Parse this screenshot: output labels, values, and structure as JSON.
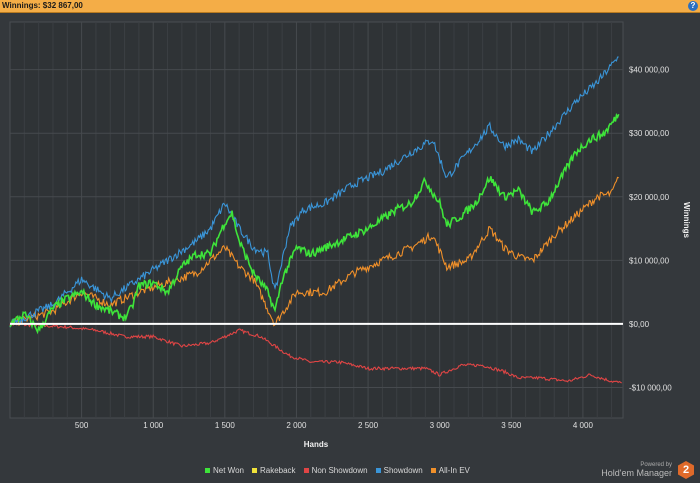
{
  "header": {
    "title": "Winnings: $32 867,00",
    "help_icon": "help-icon"
  },
  "brand": {
    "powered": "Powered by",
    "name": "Hold'em Manager",
    "logo_text": "2"
  },
  "chart_data": {
    "type": "line",
    "xlabel": "Hands",
    "ylabel": "Winnings",
    "xlim": [
      0,
      4280
    ],
    "ylim": [
      -14800,
      47500
    ],
    "xticks": [
      500,
      1000,
      1500,
      2000,
      2500,
      3000,
      3500,
      4000
    ],
    "xtick_labels": [
      "500",
      "1 000",
      "1 500",
      "2 000",
      "2 500",
      "3 000",
      "3 500",
      "4 000"
    ],
    "yticks": [
      -10000,
      0,
      10000,
      20000,
      30000,
      40000
    ],
    "ytick_labels": [
      "-$10 000,00",
      "$0,00",
      "$10 000,00",
      "$20 000,00",
      "$30 000,00",
      "$40 000,00"
    ],
    "grid": true,
    "legend": "bottom",
    "series": [
      {
        "name": "Net Won",
        "color": "#3ee43a",
        "points": [
          [
            0,
            0
          ],
          [
            100,
            1500
          ],
          [
            200,
            -1000
          ],
          [
            300,
            2500
          ],
          [
            400,
            4000
          ],
          [
            500,
            5000
          ],
          [
            600,
            3000
          ],
          [
            700,
            2000
          ],
          [
            800,
            1000
          ],
          [
            850,
            2500
          ],
          [
            900,
            6000
          ],
          [
            1000,
            6500
          ],
          [
            1100,
            5000
          ],
          [
            1200,
            9000
          ],
          [
            1300,
            11000
          ],
          [
            1400,
            11000
          ],
          [
            1500,
            16000
          ],
          [
            1550,
            17500
          ],
          [
            1600,
            13000
          ],
          [
            1700,
            8000
          ],
          [
            1800,
            5000
          ],
          [
            1850,
            2000
          ],
          [
            1900,
            7000
          ],
          [
            2000,
            12000
          ],
          [
            2100,
            11000
          ],
          [
            2200,
            12000
          ],
          [
            2300,
            13000
          ],
          [
            2400,
            14000
          ],
          [
            2500,
            15000
          ],
          [
            2600,
            16500
          ],
          [
            2700,
            18000
          ],
          [
            2800,
            19000
          ],
          [
            2900,
            22500
          ],
          [
            3000,
            19000
          ],
          [
            3050,
            15500
          ],
          [
            3150,
            17000
          ],
          [
            3250,
            19000
          ],
          [
            3350,
            23000
          ],
          [
            3450,
            20000
          ],
          [
            3550,
            21000
          ],
          [
            3650,
            17500
          ],
          [
            3750,
            19000
          ],
          [
            3850,
            23000
          ],
          [
            3950,
            27000
          ],
          [
            4050,
            29000
          ],
          [
            4150,
            30000
          ],
          [
            4250,
            33000
          ]
        ]
      },
      {
        "name": "Rakeback",
        "color": "#f0e23a",
        "points": [
          [
            0,
            0
          ],
          [
            4270,
            0
          ]
        ]
      },
      {
        "name": "Non Showdown",
        "color": "#e04545",
        "points": [
          [
            0,
            0
          ],
          [
            400,
            -500
          ],
          [
            600,
            -1000
          ],
          [
            800,
            -2000
          ],
          [
            1000,
            -2000
          ],
          [
            1200,
            -3500
          ],
          [
            1400,
            -3000
          ],
          [
            1500,
            -2000
          ],
          [
            1600,
            -1000
          ],
          [
            1750,
            -2000
          ],
          [
            1850,
            -3500
          ],
          [
            1950,
            -5000
          ],
          [
            2100,
            -6000
          ],
          [
            2300,
            -6000
          ],
          [
            2500,
            -7000
          ],
          [
            2700,
            -7000
          ],
          [
            2900,
            -7000
          ],
          [
            3000,
            -8000
          ],
          [
            3150,
            -6500
          ],
          [
            3300,
            -6500
          ],
          [
            3450,
            -7500
          ],
          [
            3550,
            -8500
          ],
          [
            3700,
            -8500
          ],
          [
            3900,
            -9000
          ],
          [
            4050,
            -8000
          ],
          [
            4200,
            -9000
          ],
          [
            4270,
            -9300
          ]
        ]
      },
      {
        "name": "Showdown",
        "color": "#3a95d8",
        "points": [
          [
            0,
            0
          ],
          [
            300,
            3000
          ],
          [
            500,
            7000
          ],
          [
            700,
            4000
          ],
          [
            900,
            7000
          ],
          [
            1100,
            10000
          ],
          [
            1300,
            13000
          ],
          [
            1400,
            15000
          ],
          [
            1500,
            19000
          ],
          [
            1600,
            15000
          ],
          [
            1700,
            12000
          ],
          [
            1800,
            11000
          ],
          [
            1850,
            5000
          ],
          [
            1950,
            15000
          ],
          [
            2050,
            18000
          ],
          [
            2200,
            19000
          ],
          [
            2400,
            22000
          ],
          [
            2600,
            24000
          ],
          [
            2800,
            27000
          ],
          [
            2950,
            29000
          ],
          [
            3050,
            23000
          ],
          [
            3200,
            27000
          ],
          [
            3350,
            31000
          ],
          [
            3450,
            28000
          ],
          [
            3550,
            29000
          ],
          [
            3650,
            27000
          ],
          [
            3800,
            31000
          ],
          [
            3950,
            35000
          ],
          [
            4100,
            38000
          ],
          [
            4250,
            42000
          ]
        ]
      },
      {
        "name": "All-In EV",
        "color": "#f0902a",
        "points": [
          [
            0,
            0
          ],
          [
            300,
            2000
          ],
          [
            500,
            5000
          ],
          [
            700,
            3000
          ],
          [
            900,
            5000
          ],
          [
            1100,
            6500
          ],
          [
            1300,
            8000
          ],
          [
            1500,
            12000
          ],
          [
            1600,
            9000
          ],
          [
            1700,
            7000
          ],
          [
            1850,
            0
          ],
          [
            2000,
            5000
          ],
          [
            2200,
            5000
          ],
          [
            2400,
            8000
          ],
          [
            2600,
            10000
          ],
          [
            2800,
            12000
          ],
          [
            2950,
            14000
          ],
          [
            3050,
            9000
          ],
          [
            3200,
            10000
          ],
          [
            3350,
            15000
          ],
          [
            3450,
            12000
          ],
          [
            3550,
            10500
          ],
          [
            3650,
            10000
          ],
          [
            3800,
            14000
          ],
          [
            3950,
            17000
          ],
          [
            4100,
            20000
          ],
          [
            4200,
            20500
          ],
          [
            4250,
            23000
          ]
        ]
      }
    ]
  }
}
